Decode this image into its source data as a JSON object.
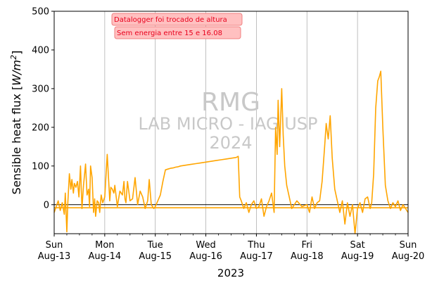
{
  "chart_data": {
    "type": "line",
    "ylabel": "Sensible heat flux [W/m²]",
    "ylabel_prefix": "Sensible heat flux [",
    "ylabel_unit_base": "W/m",
    "ylabel_unit_exp": "2",
    "ylabel_suffix": "]",
    "xlabel": "2023",
    "ylim": [
      -75,
      500
    ],
    "xlim": [
      0,
      7
    ],
    "grid": "vertical only",
    "yticks": [
      0,
      100,
      200,
      300,
      400,
      500
    ],
    "ytick_labels": [
      "0",
      "100",
      "200",
      "300",
      "400",
      "500"
    ],
    "xticks": [
      0,
      1,
      2,
      3,
      4,
      5,
      6,
      7
    ],
    "xtick_labels_line1": [
      "Sun",
      "Mon",
      "Tue",
      "Wed",
      "Thu",
      "Fri",
      "Sat",
      "Sun"
    ],
    "xtick_labels_line2": [
      "Aug-13",
      "Aug-14",
      "Aug-15",
      "Aug-16",
      "Aug-17",
      "Aug-18",
      "Aug-19",
      "Aug-20"
    ],
    "annotations": [
      "Datalogger foi trocado de altura",
      "Sem energia entre 15 e 16.08"
    ],
    "watermark": [
      "RMG",
      "LAB MICRO - IAG USP",
      "2024"
    ],
    "colors": {
      "series": "#ffa500",
      "zero_line": "#000000",
      "grid": "#b0b0b0",
      "watermark": "#c8c8c8",
      "annotation_text": "#e8001c",
      "annotation_fill": "#ffc0c0",
      "annotation_border": "#f08080"
    },
    "series": [
      {
        "x": [
          0.0,
          0.04,
          0.08,
          0.12,
          0.16,
          0.2,
          0.22,
          0.25,
          0.27,
          0.3,
          0.33,
          0.35,
          0.38,
          0.4,
          0.43,
          0.46,
          0.49,
          0.52,
          0.55,
          0.58,
          0.62,
          0.65,
          0.68,
          0.7,
          0.72,
          0.75,
          0.78,
          0.8,
          0.82,
          0.85,
          0.88,
          0.9,
          0.93,
          0.96,
          1.0,
          1.05,
          1.1,
          1.12,
          1.15,
          1.18,
          1.2,
          1.25,
          1.3,
          1.35,
          1.38,
          1.4,
          1.42,
          1.45,
          1.5,
          1.55,
          1.6,
          1.65,
          1.7,
          1.75,
          1.8,
          1.85,
          1.88,
          1.92,
          1.97,
          2.0,
          2.05,
          2.1,
          2.15,
          2.2,
          2.25,
          2.3,
          2.35,
          2.4,
          2.45,
          2.5,
          2.6,
          2.7,
          2.8,
          2.9,
          3.0,
          3.1,
          3.2,
          3.3,
          3.4,
          3.5,
          3.6,
          3.64,
          3.67,
          3.7,
          3.75,
          3.8,
          3.85,
          3.9,
          3.95,
          4.0,
          4.05,
          4.1,
          4.15,
          4.2,
          4.25,
          4.3,
          4.35,
          4.38,
          4.41,
          4.43,
          4.46,
          4.5,
          4.53,
          4.56,
          4.6,
          4.65,
          4.7,
          4.8,
          4.9,
          5.0,
          5.05,
          5.1,
          5.15,
          5.2,
          5.25,
          5.3,
          5.35,
          5.38,
          5.42,
          5.46,
          5.5,
          5.55,
          5.6,
          5.65,
          5.7,
          5.75,
          5.8,
          5.85,
          5.9,
          5.95,
          6.0,
          6.05,
          6.1,
          6.15,
          6.2,
          6.25,
          6.28,
          6.32,
          6.36,
          6.4,
          6.43,
          6.46,
          6.5,
          6.55,
          6.6,
          6.65,
          6.7,
          6.75,
          6.8,
          6.85,
          6.9,
          6.95,
          7.0
        ],
        "y": [
          -20,
          -5,
          10,
          -15,
          5,
          -25,
          30,
          -70,
          5,
          80,
          40,
          65,
          30,
          55,
          45,
          60,
          20,
          100,
          -10,
          50,
          105,
          25,
          40,
          -5,
          100,
          70,
          -20,
          15,
          -30,
          10,
          5,
          -20,
          25,
          5,
          20,
          130,
          10,
          45,
          40,
          30,
          50,
          -5,
          35,
          25,
          60,
          15,
          5,
          60,
          10,
          15,
          70,
          0,
          35,
          20,
          -10,
          10,
          65,
          0,
          -10,
          -5,
          10,
          25,
          60,
          90,
          92,
          94,
          95,
          97,
          98,
          100,
          102,
          104,
          106,
          108,
          110,
          112,
          114,
          116,
          118,
          120,
          122,
          125,
          20,
          10,
          -10,
          5,
          -20,
          0,
          10,
          -10,
          -5,
          15,
          -30,
          -5,
          10,
          30,
          -20,
          200,
          130,
          270,
          150,
          300,
          180,
          100,
          50,
          20,
          -10,
          10,
          -5,
          0,
          -20,
          20,
          -10,
          5,
          10,
          60,
          150,
          210,
          170,
          230,
          120,
          40,
          10,
          -20,
          10,
          -50,
          5,
          -30,
          0,
          -75,
          -10,
          5,
          -20,
          15,
          20,
          -10,
          5,
          80,
          250,
          320,
          330,
          345,
          200,
          50,
          10,
          -10,
          5,
          -5,
          10,
          -15,
          0,
          -10,
          -20
        ]
      },
      {
        "x": [
          0.0,
          7.0
        ],
        "y": [
          -8,
          -8
        ]
      }
    ]
  }
}
